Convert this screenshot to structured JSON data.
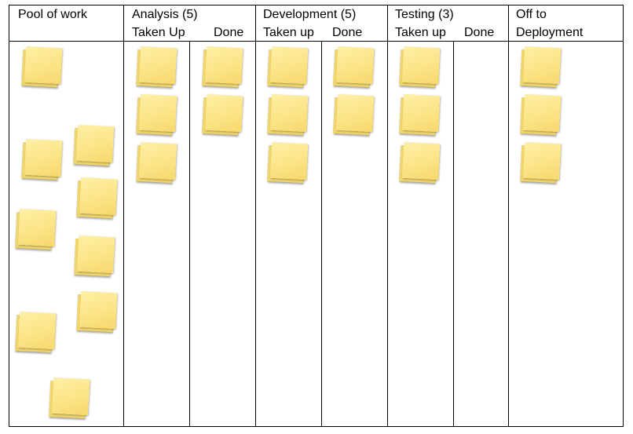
{
  "board": {
    "pool": {
      "title": "Pool of work"
    },
    "analysis": {
      "title": "Analysis (5)",
      "sub1": "Taken Up",
      "sub2": "Done"
    },
    "development": {
      "title": "Development (5)",
      "sub1": "Taken up",
      "sub2": "Done"
    },
    "testing": {
      "title": "Testing (3)",
      "sub1": "Taken up",
      "sub2": "Done"
    },
    "deployment": {
      "title_line1": "Off to",
      "title_line2": "Deployment"
    }
  },
  "colors": {
    "note": "#fbe384",
    "note_shadow": "#f1d56d",
    "grid": "#000000"
  }
}
